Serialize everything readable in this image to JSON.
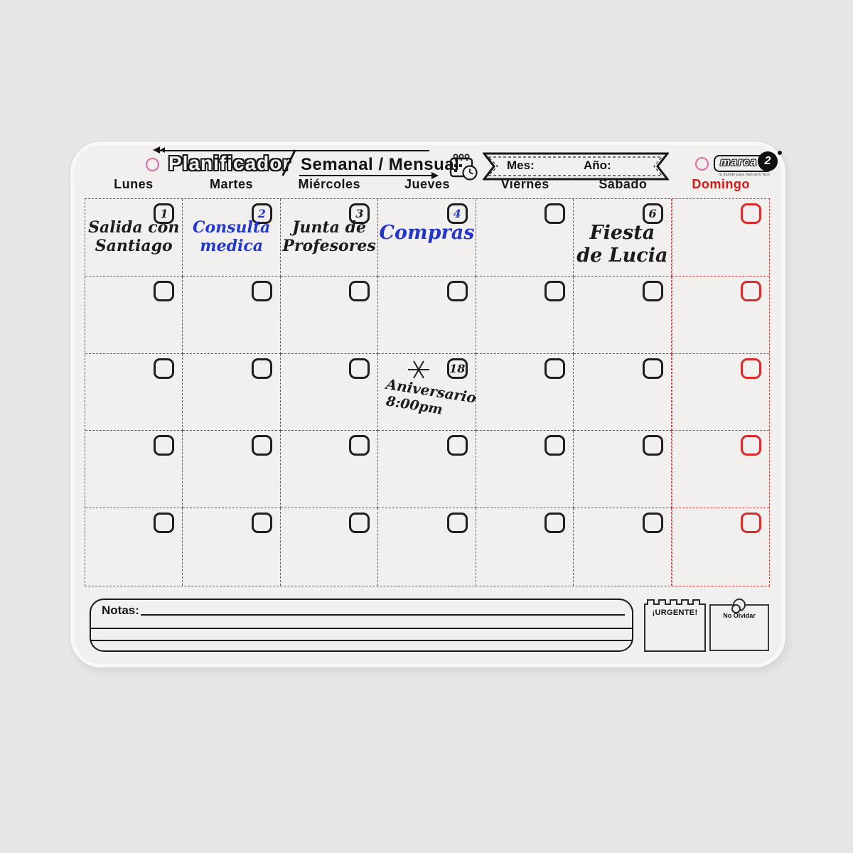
{
  "header": {
    "title_outline": "Planificador",
    "title_bold": "Semanal / Mensual",
    "banner": {
      "month_label": "Mes:",
      "month_value": "",
      "year_label": "Año:",
      "year_value": ""
    },
    "logo": {
      "text": "marca",
      "badge": "2",
      "tagline": "tu mundo para marcarlo fácil"
    }
  },
  "days": [
    {
      "label": "Lunes",
      "accent": false
    },
    {
      "label": "Martes",
      "accent": false
    },
    {
      "label": "Miércoles",
      "accent": false
    },
    {
      "label": "Jueves",
      "accent": false
    },
    {
      "label": "Viérnes",
      "accent": false
    },
    {
      "label": "Sábado",
      "accent": false
    },
    {
      "label": "Domingo",
      "accent": true
    }
  ],
  "calendar": {
    "cells": [
      {
        "date": "1",
        "lines": [
          "Salida con",
          "Santiago"
        ],
        "ink": "black"
      },
      {
        "date": "2",
        "date_color": "blue",
        "lines": [
          "Consulta",
          "medica"
        ],
        "ink": "blue"
      },
      {
        "date": "3",
        "lines": [
          "Junta de",
          "Profesores"
        ],
        "ink": "black"
      },
      {
        "date": "4",
        "date_color": "blue",
        "lines": [
          "Compras"
        ],
        "ink": "blue",
        "big": true
      },
      {},
      {
        "date": "6",
        "lines": [
          "Fiesta",
          "de Lucia"
        ],
        "ink": "black",
        "big": true
      },
      {},
      {},
      {},
      {},
      {},
      {},
      {},
      {},
      {},
      {},
      {},
      {
        "date": "18",
        "lines": [
          "Aniversario",
          "8:00pm"
        ],
        "ink": "black",
        "special": true
      },
      {},
      {},
      {},
      {},
      {},
      {},
      {},
      {},
      {},
      {},
      {},
      {},
      {},
      {},
      {},
      {},
      {}
    ]
  },
  "notes": {
    "label": "Notas:"
  },
  "urgent": {
    "label": "¡URGENTE!"
  },
  "reminder": {
    "label": "No Olvidar"
  },
  "colors": {
    "background": "#e7e6e4",
    "board": "#f1f0ee",
    "ink_black": "#1c1c1c",
    "ink_blue": "#2336cf",
    "accent_red": "#d92b2b",
    "grid_dash": "#5e5e5e",
    "hole_pink": "#e06a9f"
  }
}
